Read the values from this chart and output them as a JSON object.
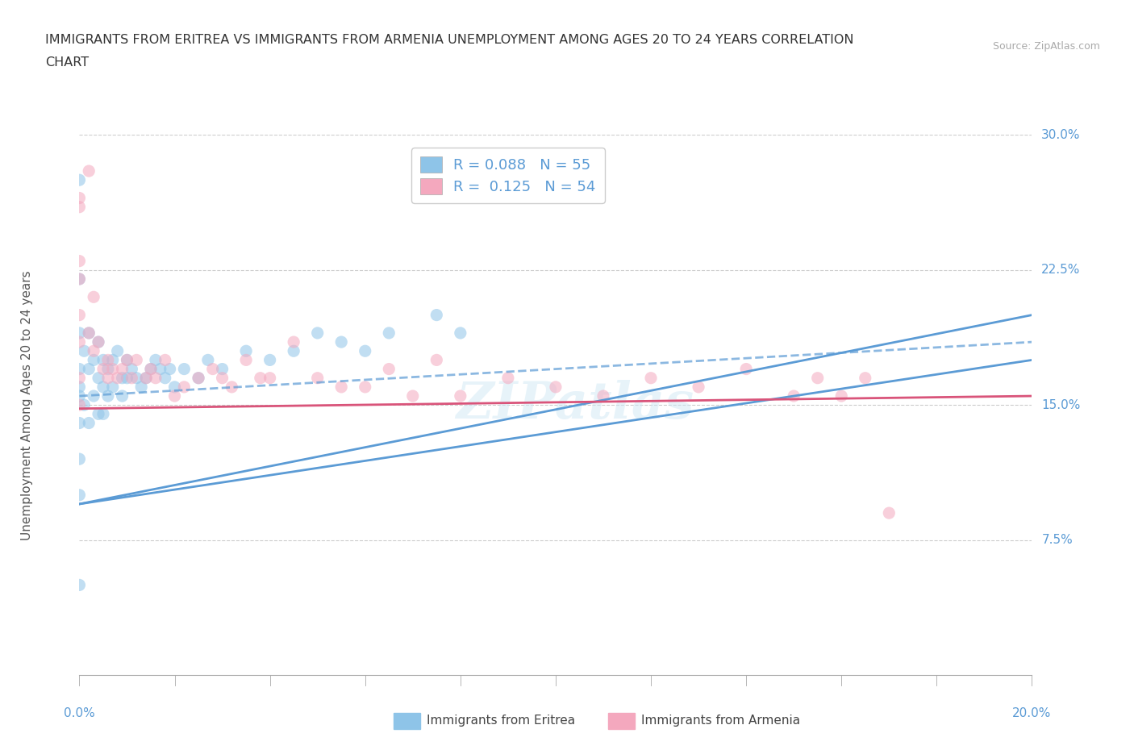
{
  "title_line1": "IMMIGRANTS FROM ERITREA VS IMMIGRANTS FROM ARMENIA UNEMPLOYMENT AMONG AGES 20 TO 24 YEARS CORRELATION",
  "title_line2": "CHART",
  "source": "Source: ZipAtlas.com",
  "ylabel": "Unemployment Among Ages 20 to 24 years",
  "xmin": 0.0,
  "xmax": 0.2,
  "ymin": 0.0,
  "ymax": 0.3,
  "legend_eritrea_R": "0.088",
  "legend_eritrea_N": "55",
  "legend_armenia_R": "0.125",
  "legend_armenia_N": "54",
  "eritrea_color": "#8ec4e8",
  "armenia_color": "#f4a8be",
  "eritrea_line_color": "#5b9bd5",
  "armenia_line_color": "#d9547a",
  "label_color": "#5b9bd5",
  "background_color": "#ffffff",
  "eritrea_scatter_x": [
    0.0,
    0.0,
    0.0,
    0.0,
    0.0,
    0.0,
    0.0,
    0.0,
    0.0,
    0.0,
    0.001,
    0.001,
    0.002,
    0.002,
    0.002,
    0.003,
    0.003,
    0.004,
    0.004,
    0.004,
    0.005,
    0.005,
    0.005,
    0.006,
    0.006,
    0.007,
    0.007,
    0.008,
    0.009,
    0.009,
    0.01,
    0.01,
    0.011,
    0.012,
    0.013,
    0.014,
    0.015,
    0.016,
    0.017,
    0.018,
    0.019,
    0.02,
    0.022,
    0.025,
    0.027,
    0.03,
    0.035,
    0.04,
    0.045,
    0.05,
    0.055,
    0.06,
    0.065,
    0.075,
    0.08
  ],
  "eritrea_scatter_y": [
    0.275,
    0.22,
    0.19,
    0.17,
    0.16,
    0.155,
    0.14,
    0.12,
    0.1,
    0.05,
    0.18,
    0.15,
    0.19,
    0.17,
    0.14,
    0.175,
    0.155,
    0.185,
    0.165,
    0.145,
    0.175,
    0.16,
    0.145,
    0.17,
    0.155,
    0.175,
    0.16,
    0.18,
    0.165,
    0.155,
    0.175,
    0.165,
    0.17,
    0.165,
    0.16,
    0.165,
    0.17,
    0.175,
    0.17,
    0.165,
    0.17,
    0.16,
    0.17,
    0.165,
    0.175,
    0.17,
    0.18,
    0.175,
    0.18,
    0.19,
    0.185,
    0.18,
    0.19,
    0.2,
    0.19
  ],
  "armenia_scatter_x": [
    0.0,
    0.0,
    0.0,
    0.0,
    0.0,
    0.0,
    0.0,
    0.0,
    0.002,
    0.002,
    0.003,
    0.003,
    0.004,
    0.005,
    0.006,
    0.006,
    0.007,
    0.008,
    0.009,
    0.01,
    0.011,
    0.012,
    0.014,
    0.015,
    0.016,
    0.018,
    0.02,
    0.022,
    0.025,
    0.028,
    0.03,
    0.032,
    0.035,
    0.038,
    0.04,
    0.045,
    0.05,
    0.055,
    0.06,
    0.065,
    0.07,
    0.075,
    0.08,
    0.09,
    0.1,
    0.11,
    0.12,
    0.13,
    0.14,
    0.15,
    0.155,
    0.16,
    0.165,
    0.17
  ],
  "armenia_scatter_y": [
    0.265,
    0.23,
    0.26,
    0.22,
    0.2,
    0.185,
    0.165,
    0.15,
    0.28,
    0.19,
    0.21,
    0.18,
    0.185,
    0.17,
    0.175,
    0.165,
    0.17,
    0.165,
    0.17,
    0.175,
    0.165,
    0.175,
    0.165,
    0.17,
    0.165,
    0.175,
    0.155,
    0.16,
    0.165,
    0.17,
    0.165,
    0.16,
    0.175,
    0.165,
    0.165,
    0.185,
    0.165,
    0.16,
    0.16,
    0.17,
    0.155,
    0.175,
    0.155,
    0.165,
    0.16,
    0.155,
    0.165,
    0.16,
    0.17,
    0.155,
    0.165,
    0.155,
    0.165,
    0.09
  ]
}
